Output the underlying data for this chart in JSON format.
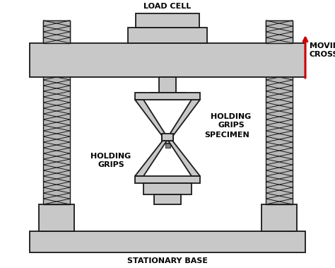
{
  "bg_color": "#ffffff",
  "gray_fill": "#c8c8c8",
  "dark_outline": "#1a1a1a",
  "red_arrow": "#cc0000",
  "label_color": "#000000",
  "labels": {
    "load_cell": "LOAD CELL",
    "moving_crosshead": "MOVING\nCROSSHEAD",
    "holding_grips_top": "HOLDING\nGRIPS",
    "specimen": "SPECIMEN",
    "holding_grips_bot": "HOLDING\nGRIPS",
    "stationary_base": "STATIONARY BASE"
  },
  "figsize": [
    4.74,
    3.79
  ],
  "dpi": 100
}
